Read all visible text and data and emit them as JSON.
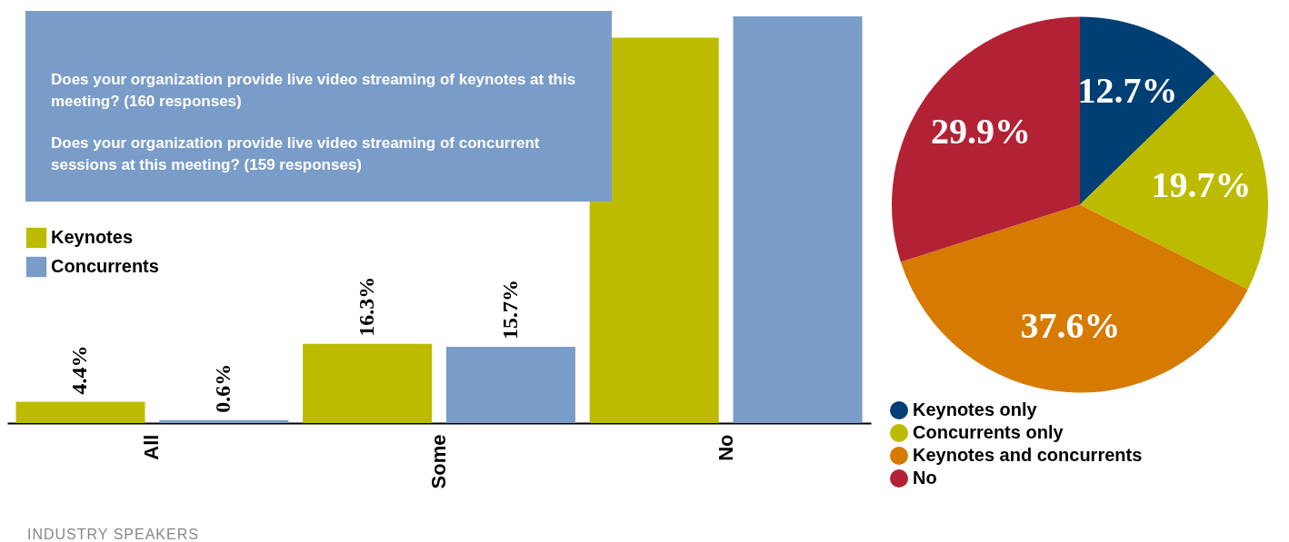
{
  "chart_data": [
    {
      "type": "bar",
      "title": "Does your organization provide live video streaming of keynotes at this meeting? (160 responses)",
      "subtitle": "Does your organization provide live video streaming of concurrent sessions at this meeting? (159 responses)",
      "annotations": [
        "INDUSTRY SPEAKERS"
      ],
      "categories": [
        "All",
        "Some",
        "No"
      ],
      "legend": "left",
      "series": [
        {
          "name": "Keynotes",
          "color": "#bdbb00",
          "values": [
            4.4,
            16.3,
            79.3
          ],
          "value_labels": [
            "4.4%",
            "16.3%",
            null
          ]
        },
        {
          "name": "Concurrents",
          "color": "#7a9cc8",
          "values": [
            0.6,
            15.7,
            83.7
          ],
          "value_labels": [
            "0.6%",
            "15.7%",
            null
          ]
        }
      ]
    },
    {
      "type": "pie",
      "categories": [
        "Keynotes only",
        "Concurrents only",
        "Keynotes and concurrents",
        "No"
      ],
      "values": [
        12.7,
        19.7,
        37.6,
        29.9
      ],
      "colors": [
        "#003f73",
        "#bdbb00",
        "#d67a00",
        "#b32234"
      ],
      "value_labels": [
        "12.7%",
        "19.7%",
        "37.6%",
        "29.9%"
      ],
      "legend": "bottom"
    }
  ]
}
